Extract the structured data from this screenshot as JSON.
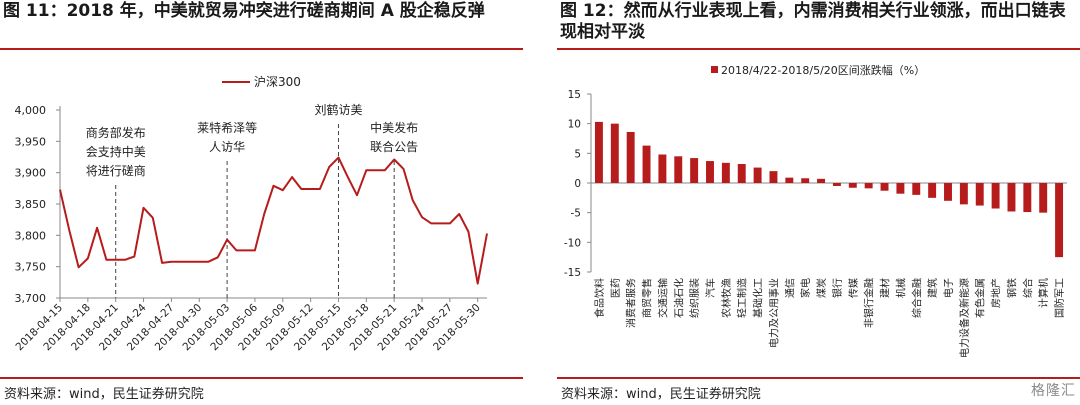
{
  "figures": [
    {
      "title": "图 11：2018 年，中美就贸易冲突进行磋商期间 A 股企稳反弹",
      "source": "资料来源：wind，民生证券研究院",
      "chart_data": {
        "type": "line",
        "legend_label": "沪深300",
        "legend_position": "top",
        "color": "#b71c1c",
        "ylim": [
          3700,
          4000
        ],
        "yticks": [
          "3,700",
          "3,750",
          "3,800",
          "3,850",
          "3,900",
          "3,950",
          "4,000"
        ],
        "xtick_labels": [
          "2018-04-15",
          "2018-04-18",
          "2018-04-21",
          "2018-04-24",
          "2018-04-27",
          "2018-04-30",
          "2018-05-03",
          "2018-05-06",
          "2018-05-09",
          "2018-05-12",
          "2018-05-15",
          "2018-05-18",
          "2018-05-21",
          "2018-05-24",
          "2018-05-27",
          "2018-05-30"
        ],
        "series": [
          {
            "name": "沪深300",
            "x": [
              "2018-04-15",
              "2018-04-16",
              "2018-04-17",
              "2018-04-18",
              "2018-04-19",
              "2018-04-20",
              "2018-04-21",
              "2018-04-22",
              "2018-04-23",
              "2018-04-24",
              "2018-04-25",
              "2018-04-26",
              "2018-04-27",
              "2018-04-28",
              "2018-04-29",
              "2018-04-30",
              "2018-05-01",
              "2018-05-02",
              "2018-05-03",
              "2018-05-04",
              "2018-05-05",
              "2018-05-06",
              "2018-05-07",
              "2018-05-08",
              "2018-05-09",
              "2018-05-10",
              "2018-05-11",
              "2018-05-12",
              "2018-05-13",
              "2018-05-14",
              "2018-05-15",
              "2018-05-16",
              "2018-05-17",
              "2018-05-18",
              "2018-05-19",
              "2018-05-20",
              "2018-05-21",
              "2018-05-22",
              "2018-05-23",
              "2018-05-24",
              "2018-05-25",
              "2018-05-26",
              "2018-05-27",
              "2018-05-28",
              "2018-05-29",
              "2018-05-30",
              "2018-05-31"
            ],
            "values": [
              3873,
              3808,
              3749,
              3763,
              3812,
              3761,
              3761,
              3761,
              3766,
              3844,
              3828,
              3756,
              3758,
              3758,
              3758,
              3758,
              3758,
              3765,
              3793,
              3776,
              3776,
              3776,
              3834,
              3879,
              3872,
              3893,
              3874,
              3874,
              3874,
              3909,
              3924,
              3893,
              3864,
              3904,
              3904,
              3904,
              3921,
              3906,
              3856,
              3829,
              3819,
              3819,
              3819,
              3834,
              3806,
              3723,
              3803
            ]
          }
        ],
        "annotations": [
          {
            "x": "2018-04-21",
            "lines": [
              "商务部发布",
              "会支持中美",
              "将进行磋商"
            ]
          },
          {
            "x": "2018-05-03",
            "lines": [
              "莱特希泽等",
              "人访华"
            ]
          },
          {
            "x": "2018-05-15",
            "lines": [
              "刘鹤访美"
            ]
          },
          {
            "x": "2018-05-21",
            "lines": [
              "中美发布",
              "联合公告"
            ]
          }
        ]
      }
    },
    {
      "title": "图 12：然而从行业表现上看，内需消费相关行业领涨，而出口链表现相对平淡",
      "source": "资料来源：wind，民生证券研究院",
      "watermark": "格隆汇",
      "chart_data": {
        "type": "bar",
        "legend_label": "2018/4/22-2018/5/20区间涨跌幅（%）",
        "legend_position": "top",
        "color": "#b71c1c",
        "ylim": [
          -15,
          15
        ],
        "yticks": [
          "-15",
          "-10",
          "-5",
          "0",
          "5",
          "10",
          "15"
        ],
        "categories": [
          "食品饮料",
          "医药",
          "消费者服务",
          "商贸零售",
          "交通运输",
          "石油石化",
          "纺织服装",
          "汽车",
          "农林牧渔",
          "轻工制造",
          "基础化工",
          "电力及公用事业",
          "通信",
          "家电",
          "煤炭",
          "银行",
          "传媒",
          "非银行金融",
          "建材",
          "机械",
          "综合金融",
          "建筑",
          "电子",
          "电力设备及新能源",
          "有色金属",
          "房地产",
          "钢铁",
          "综合",
          "计算机",
          "国防军工"
        ],
        "series": [
          {
            "name": "2018/4/22-2018/5/20区间涨跌幅（%）",
            "values": [
              10.3,
              10.0,
              8.6,
              6.3,
              4.8,
              4.5,
              4.2,
              3.7,
              3.4,
              3.2,
              2.6,
              2.0,
              0.9,
              0.8,
              0.7,
              -0.5,
              -0.8,
              -0.9,
              -1.3,
              -1.8,
              -2.0,
              -2.5,
              -3.0,
              -3.6,
              -3.8,
              -4.3,
              -4.8,
              -4.9,
              -5.0,
              -12.5
            ]
          }
        ]
      }
    }
  ]
}
